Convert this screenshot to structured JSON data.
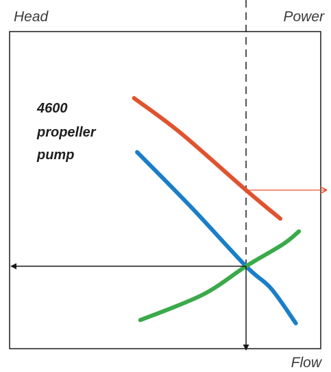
{
  "chart_data": {
    "type": "line",
    "axis_labels": {
      "left": "Head",
      "right": "Power",
      "bottom": "Flow"
    },
    "annotation": [
      "4600",
      "propeller",
      "pump"
    ],
    "tick_labels": false,
    "grid": false,
    "legend": "none",
    "operating_flow": 0.76,
    "operating_head": 0.26,
    "operating_power": 0.5,
    "series": [
      {
        "color": "#e0532f",
        "points": [
          [
            0.4,
            0.79
          ],
          [
            0.55,
            0.68
          ],
          [
            0.76,
            0.5
          ],
          [
            0.87,
            0.41
          ]
        ]
      },
      {
        "color": "#1a7ec8",
        "points": [
          [
            0.41,
            0.62
          ],
          [
            0.58,
            0.45
          ],
          [
            0.76,
            0.26
          ],
          [
            0.84,
            0.19
          ],
          [
            0.92,
            0.08
          ]
        ]
      },
      {
        "color": "#3aaa4a",
        "points": [
          [
            0.42,
            0.09
          ],
          [
            0.62,
            0.17
          ],
          [
            0.76,
            0.26
          ],
          [
            0.88,
            0.33
          ],
          [
            0.93,
            0.37
          ]
        ]
      }
    ],
    "reference_lines": [
      {
        "kind": "dashed-vertical",
        "color": "#1a1a1a"
      },
      {
        "kind": "arrow-to-head-axis",
        "color": "#1a1a1a"
      },
      {
        "kind": "arrow-to-flow-axis",
        "color": "#1a1a1a"
      },
      {
        "kind": "arrow-to-power-axis",
        "color": "#e0532f"
      }
    ]
  }
}
